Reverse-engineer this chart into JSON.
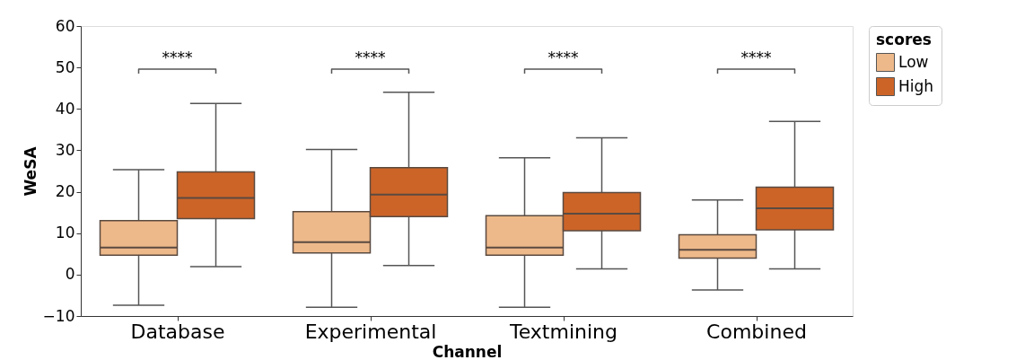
{
  "chart_data": {
    "type": "box",
    "xlabel": "Channel",
    "ylabel": "WeSA",
    "legend_title": "scores",
    "legend": "right",
    "categories": [
      "Database",
      "Experimental",
      "Textmining",
      "Combined"
    ],
    "ylim": [
      -10,
      60
    ],
    "yticks": [
      -10,
      0,
      10,
      20,
      30,
      40,
      50,
      60
    ],
    "grid": false,
    "series": [
      {
        "name": "Low",
        "color": "#eeb98a",
        "boxes": [
          {
            "low": -7.4,
            "q1": 4.7,
            "median": 6.5,
            "q3": 13,
            "high": 25.3
          },
          {
            "low": -7.9,
            "q1": 5.2,
            "median": 7.8,
            "q3": 15.2,
            "high": 30.2
          },
          {
            "low": -7.9,
            "q1": 4.7,
            "median": 6.5,
            "q3": 14.2,
            "high": 28.2
          },
          {
            "low": -3.7,
            "q1": 4,
            "median": 6,
            "q3": 9.6,
            "high": 18
          }
        ]
      },
      {
        "name": "High",
        "color": "#cc6428",
        "boxes": [
          {
            "low": 1.9,
            "q1": 13.5,
            "median": 18.5,
            "q3": 24.8,
            "high": 41.3
          },
          {
            "low": 2.2,
            "q1": 14,
            "median": 19.3,
            "q3": 25.8,
            "high": 44
          },
          {
            "low": 1.4,
            "q1": 10.6,
            "median": 14.7,
            "q3": 19.8,
            "high": 33
          },
          {
            "low": 1.4,
            "q1": 10.8,
            "median": 16,
            "q3": 21.1,
            "high": 37
          }
        ]
      }
    ],
    "annotations": [
      "****",
      "****",
      "****",
      "****"
    ]
  }
}
